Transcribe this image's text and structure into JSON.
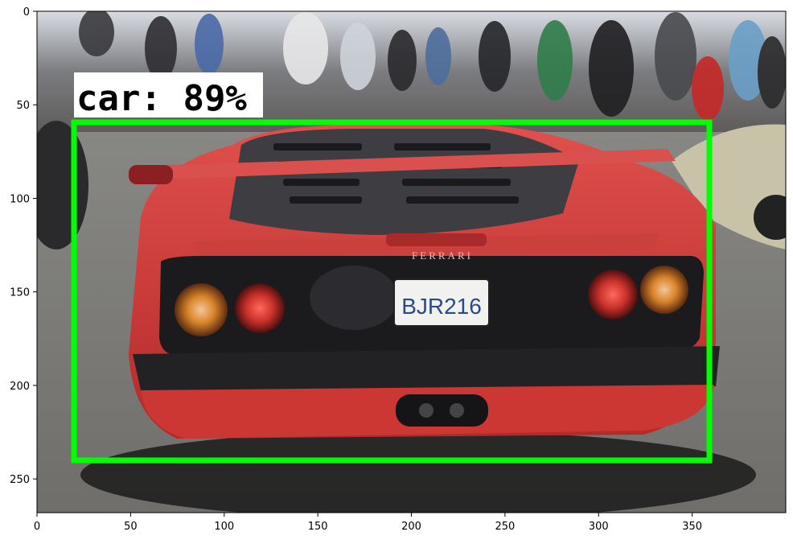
{
  "figure": {
    "x_ticks": [
      "0",
      "50",
      "100",
      "150",
      "200",
      "250",
      "300",
      "350"
    ],
    "y_ticks": [
      "0",
      "50",
      "100",
      "150",
      "200",
      "250"
    ]
  },
  "detection": {
    "label": "car: 89%",
    "class": "car",
    "confidence": 0.89,
    "box_color": "#00ff00",
    "label_bg": "#ffffff"
  },
  "scene": {
    "license_plate": "BJR216",
    "badge": "FERRARI",
    "car_color": "#d23a38"
  }
}
